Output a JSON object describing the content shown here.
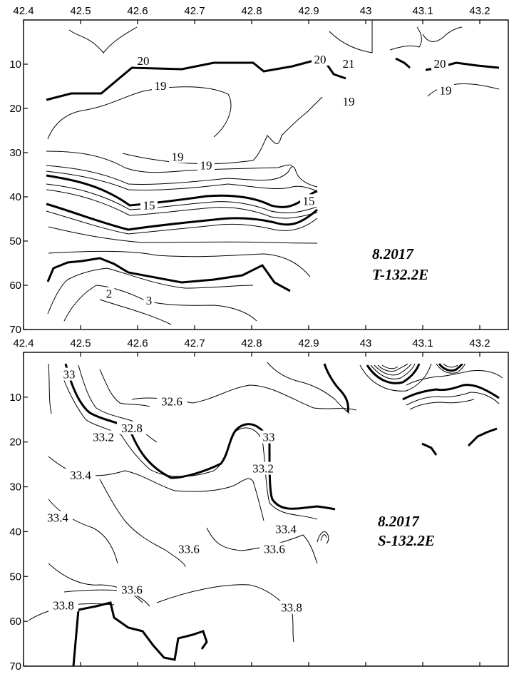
{
  "chart_data": [
    {
      "type": "contour",
      "caption_line1": "8.2017",
      "caption_line2": "T-132.2E",
      "x_ticks": [
        "42.4",
        "42.5",
        "42.6",
        "42.7",
        "42.8",
        "42.9",
        "43",
        "43.1",
        "43.2"
      ],
      "y_ticks": [
        "10",
        "20",
        "30",
        "40",
        "50",
        "60",
        "70"
      ],
      "xlim": [
        42.4,
        43.25
      ],
      "ylim": [
        0,
        70
      ],
      "y_reversed": true,
      "contour_labels": [
        {
          "text": "20",
          "x": 42.61,
          "y": 9.8
        },
        {
          "text": "20",
          "x": 42.92,
          "y": 9.5
        },
        {
          "text": "21",
          "x": 42.97,
          "y": 10.5
        },
        {
          "text": "20",
          "x": 43.13,
          "y": 10.5
        },
        {
          "text": "19",
          "x": 42.64,
          "y": 15.5
        },
        {
          "text": "19",
          "x": 42.97,
          "y": 19.0
        },
        {
          "text": "19",
          "x": 43.14,
          "y": 16.5
        },
        {
          "text": "19",
          "x": 42.67,
          "y": 31.5
        },
        {
          "text": "19",
          "x": 42.72,
          "y": 33.5
        },
        {
          "text": "15",
          "x": 42.62,
          "y": 42.5
        },
        {
          "text": "15",
          "x": 42.9,
          "y": 41.5
        },
        {
          "text": "2",
          "x": 42.55,
          "y": 62.5
        },
        {
          "text": "3",
          "x": 42.62,
          "y": 64.0
        }
      ]
    },
    {
      "type": "contour",
      "caption_line1": "8.2017",
      "caption_line2": "S-132.2E",
      "x_ticks": [
        "42.4",
        "42.5",
        "42.6",
        "42.7",
        "42.8",
        "42.9",
        "43",
        "43.1",
        "43.2"
      ],
      "y_ticks": [
        "10",
        "20",
        "30",
        "40",
        "50",
        "60",
        "70"
      ],
      "xlim": [
        42.4,
        43.25
      ],
      "ylim": [
        0,
        70
      ],
      "y_reversed": true,
      "contour_labels": [
        {
          "text": "33",
          "x": 42.48,
          "y": 5.5
        },
        {
          "text": "32.6",
          "x": 42.66,
          "y": 11.5
        },
        {
          "text": "32.8",
          "x": 42.59,
          "y": 17.5
        },
        {
          "text": "33.2",
          "x": 42.54,
          "y": 19.5
        },
        {
          "text": "33",
          "x": 42.83,
          "y": 19.5
        },
        {
          "text": "33.4",
          "x": 42.5,
          "y": 28.0
        },
        {
          "text": "33.2",
          "x": 42.82,
          "y": 26.5
        },
        {
          "text": "33.4",
          "x": 42.46,
          "y": 37.5
        },
        {
          "text": "33.4",
          "x": 42.86,
          "y": 40.0
        },
        {
          "text": "33.6",
          "x": 42.69,
          "y": 44.5
        },
        {
          "text": "33.6",
          "x": 42.84,
          "y": 44.5
        },
        {
          "text": "33.6",
          "x": 42.59,
          "y": 53.5
        },
        {
          "text": "33.8",
          "x": 42.47,
          "y": 57.0
        },
        {
          "text": "33.8",
          "x": 42.87,
          "y": 57.5
        }
      ]
    }
  ]
}
